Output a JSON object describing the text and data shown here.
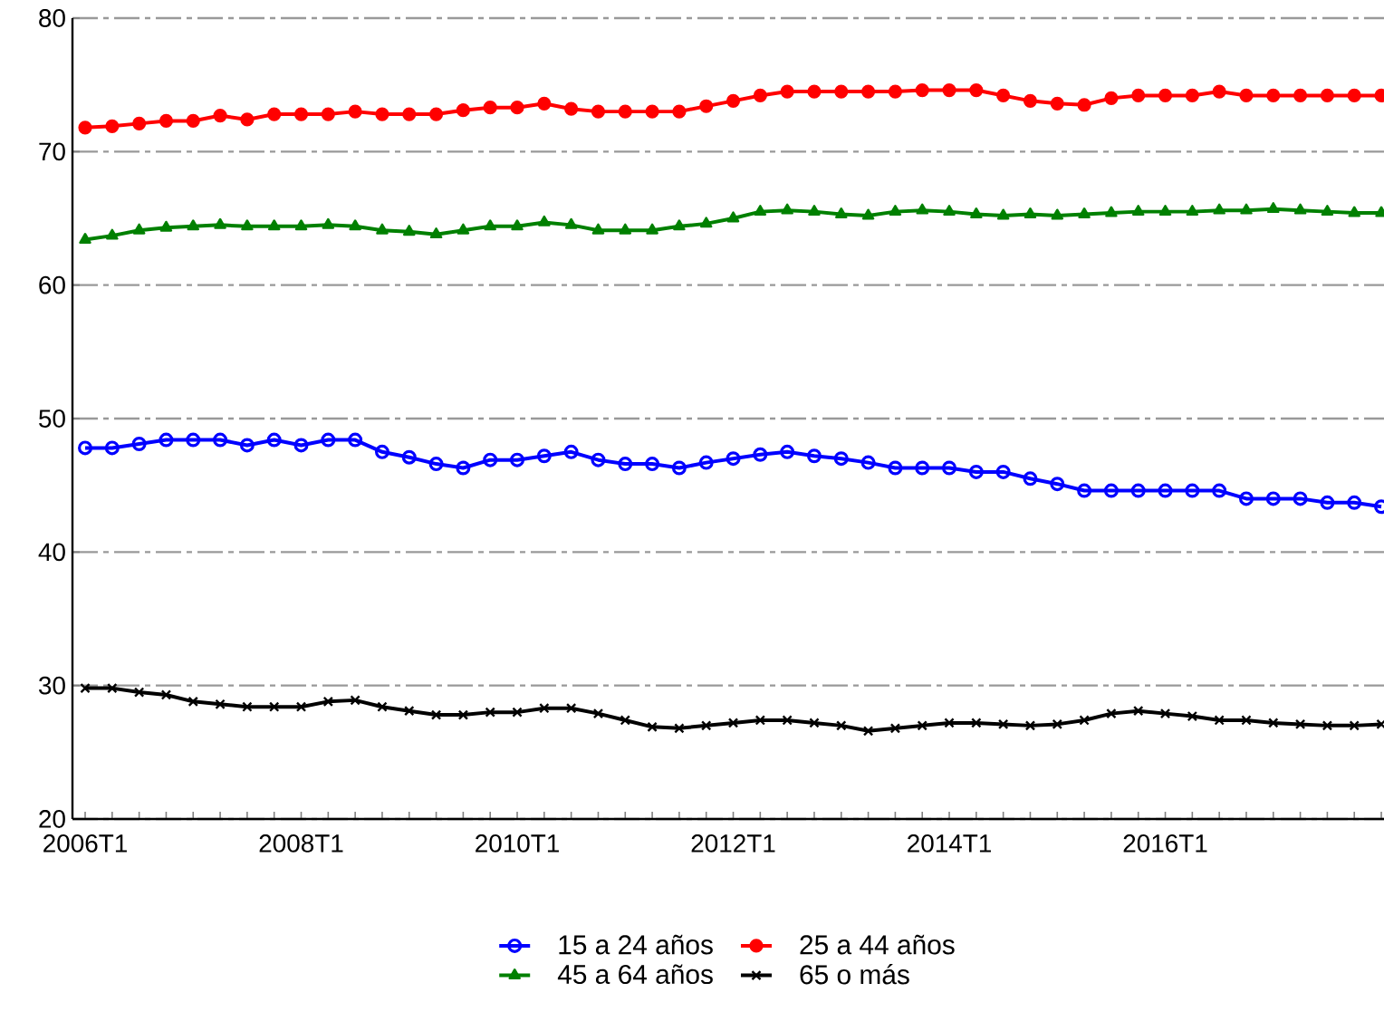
{
  "chart_data": {
    "type": "line",
    "categories": [
      "2006T1",
      null,
      null,
      null,
      null,
      null,
      null,
      null,
      "2008T1",
      null,
      null,
      null,
      null,
      null,
      null,
      null,
      "2010T1",
      null,
      null,
      null,
      null,
      null,
      null,
      null,
      "2012T1",
      null,
      null,
      null,
      null,
      null,
      null,
      null,
      "2014T1",
      null,
      null,
      null,
      null,
      null,
      null,
      null,
      "2016T1",
      null,
      null,
      null,
      null,
      null,
      null,
      null,
      null
    ],
    "series": [
      {
        "name": "15 a 24 años",
        "color": "#0000ff",
        "marker": "circle",
        "values": [
          47.8,
          47.8,
          48.1,
          48.4,
          48.4,
          48.4,
          48.0,
          48.4,
          48.0,
          48.4,
          48.4,
          47.5,
          47.1,
          46.6,
          46.3,
          46.9,
          46.9,
          47.2,
          47.5,
          46.9,
          46.6,
          46.6,
          46.3,
          46.7,
          47.0,
          47.3,
          47.5,
          47.2,
          47.0,
          46.7,
          46.3,
          46.3,
          46.3,
          46.0,
          46.0,
          45.5,
          45.1,
          44.6,
          44.6,
          44.6,
          44.6,
          44.6,
          44.6,
          44.0,
          44.0,
          44.0,
          43.7,
          43.7,
          43.4
        ]
      },
      {
        "name": "25 a 44 años",
        "color": "#ff0000",
        "marker": "circle",
        "values": [
          71.8,
          71.9,
          72.1,
          72.3,
          72.3,
          72.7,
          72.4,
          72.8,
          72.8,
          72.8,
          73.0,
          72.8,
          72.8,
          72.8,
          73.1,
          73.3,
          73.3,
          73.6,
          73.2,
          73.0,
          73.0,
          73.0,
          73.0,
          73.4,
          73.8,
          74.2,
          74.5,
          74.5,
          74.5,
          74.5,
          74.5,
          74.6,
          74.6,
          74.6,
          74.2,
          73.8,
          73.6,
          73.5,
          74.0,
          74.2,
          74.2,
          74.2,
          74.5,
          74.2,
          74.2,
          74.2,
          74.2,
          74.2,
          74.2
        ]
      },
      {
        "name": "45 a 64 años",
        "color": "#008000",
        "marker": "triangle",
        "values": [
          63.4,
          63.7,
          64.1,
          64.3,
          64.4,
          64.5,
          64.4,
          64.4,
          64.4,
          64.5,
          64.4,
          64.1,
          64.0,
          63.8,
          64.1,
          64.4,
          64.4,
          64.7,
          64.5,
          64.1,
          64.1,
          64.1,
          64.4,
          64.6,
          65.0,
          65.5,
          65.6,
          65.5,
          65.3,
          65.2,
          65.5,
          65.6,
          65.5,
          65.3,
          65.2,
          65.3,
          65.2,
          65.3,
          65.4,
          65.5,
          65.5,
          65.5,
          65.6,
          65.6,
          65.7,
          65.6,
          65.5,
          65.4,
          65.4
        ]
      },
      {
        "name": "65 o más",
        "color": "#000000",
        "marker": "cross",
        "values": [
          29.8,
          29.8,
          29.5,
          29.3,
          28.8,
          28.6,
          28.4,
          28.4,
          28.4,
          28.8,
          28.9,
          28.4,
          28.1,
          27.8,
          27.8,
          28.0,
          28.0,
          28.3,
          28.3,
          27.9,
          27.4,
          26.9,
          26.8,
          27.0,
          27.2,
          27.4,
          27.4,
          27.2,
          27.0,
          26.6,
          26.8,
          27.0,
          27.2,
          27.2,
          27.1,
          27.0,
          27.1,
          27.4,
          27.9,
          28.1,
          27.9,
          27.7,
          27.4,
          27.4,
          27.2,
          27.1,
          27.0,
          27.0,
          27.1
        ]
      }
    ],
    "ylim": [
      20,
      80
    ],
    "yticks": [
      20,
      30,
      40,
      50,
      60,
      70,
      80
    ],
    "grid": "y",
    "legend": "bottom",
    "line_style": "solid"
  }
}
